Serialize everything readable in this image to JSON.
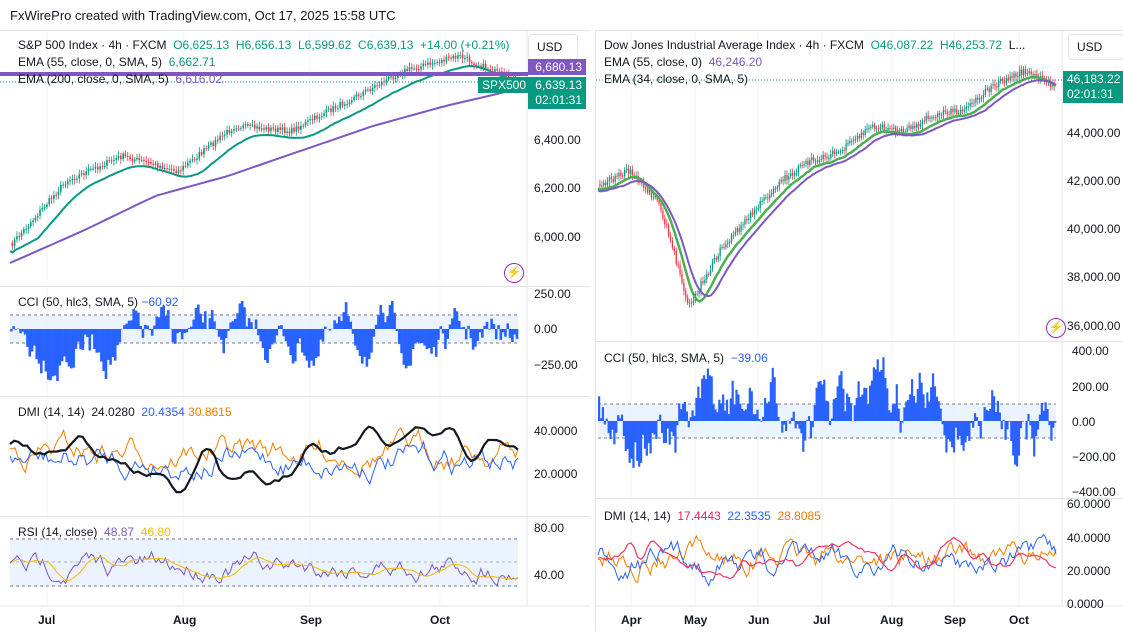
{
  "title": "FxWirePro created with TradingView.com, Oct 17, 2025 15:58 UTC",
  "colors": {
    "up": "#089981",
    "down": "#f23645",
    "ema55": "#089981",
    "ema200": "#7e57c2",
    "cci": "#2962ff",
    "adx": "#131722",
    "plus_di": "#2962ff",
    "minus_di": "#f57c00",
    "rsi": "#7e57c2",
    "rsi_ma": "#f9b800"
  },
  "left": {
    "currency": "USD",
    "symbol": "S&P 500 Index · 4h · FXCM",
    "open": "O6,625.13",
    "high": "H6,656.13",
    "low": "L6,599.62",
    "close": "C6,639.13",
    "change": "+14.00 (+0.21%)",
    "ema1_label": "EMA (55, close, 0, SMA, 5)",
    "ema1_value": "6,662.71",
    "ema2_label": "EMA (200, close, 0, SMA, 5)",
    "ema2_value": "6,616.02",
    "price_tag_purple": "6,680.13",
    "ticker_tag": "SPX500",
    "price_tag": "6,639.13",
    "countdown": "02:01:31",
    "price_axis": [
      "6,400.00",
      "6,200.00",
      "6,000.00"
    ],
    "cci": {
      "label": "CCI (50, hlc3, SMA, 5)",
      "value": "−60.92",
      "axis": [
        "250.00",
        "0.00",
        "−250.00"
      ]
    },
    "dmi": {
      "label": "DMI (14, 14)",
      "adx": "24.0280",
      "plus": "20.4354",
      "minus": "30.8615",
      "axis": [
        "40.0000",
        "20.0000"
      ]
    },
    "rsi": {
      "label": "RSI (14, close)",
      "value": "48.87",
      "ma": "46.80",
      "axis": [
        "80.00",
        "40.00"
      ]
    },
    "time_axis": [
      "Jul",
      "Aug",
      "Sep",
      "Oct"
    ]
  },
  "right": {
    "currency": "USD",
    "symbol": "Dow Jones Industrial Average Index · 4h · FXCM",
    "open": "O46,087.22",
    "high": "H46,253.72",
    "rest": "L...",
    "ema1_label": "EMA (55, close, 0)",
    "ema1_value": "46,246.20",
    "ema2_label": "EMA (34, close, 0, SMA, 5)",
    "price_tag": "46,183.22",
    "countdown": "02:01:31",
    "price_axis": [
      "44,000.00",
      "42,000.00",
      "40,000.00",
      "38,000.00",
      "36,000.00"
    ],
    "cci": {
      "label": "CCI (50, hlc3, SMA, 5)",
      "value": "−39.06",
      "axis": [
        "400.00",
        "200.00",
        "0.00",
        "−200.00",
        "−400.00"
      ]
    },
    "dmi": {
      "label": "DMI (14, 14)",
      "adx": "17.4443",
      "plus": "22.3535",
      "minus": "28.8085",
      "axis": [
        "60.0000",
        "40.0000",
        "20.0000",
        "0.0000"
      ]
    },
    "time_axis": [
      "Apr",
      "May",
      "Jun",
      "Jul",
      "Aug",
      "Sep",
      "Oct"
    ]
  }
}
